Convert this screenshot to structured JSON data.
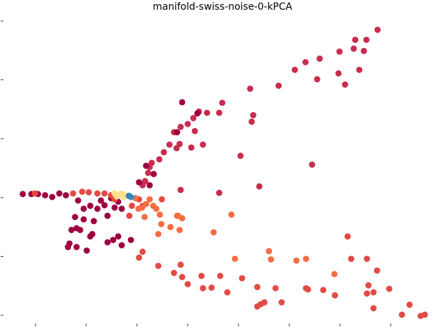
{
  "chart_data": {
    "type": "scatter",
    "title": "manifold-swiss-noise-0-kPCA",
    "xlim": [
      -0.63,
      8.0
    ],
    "ylim": [
      -0.14,
      5.12
    ],
    "xticks": [
      0,
      1,
      2,
      3,
      4,
      5,
      6,
      7
    ],
    "yticks": [
      0,
      1,
      2,
      3,
      4,
      5
    ],
    "grid": false,
    "series": [
      {
        "color": "#c82c4e",
        "x": [
          6.74,
          6.3,
          6.52,
          6.47,
          6.27,
          5.99,
          5.6,
          5.32,
          5.11,
          5.97,
          5.55,
          6.1,
          6.38,
          4.79,
          4.23,
          3.68,
          4.29,
          4.26,
          3.62,
          3.38,
          3.22,
          3.11,
          3.0,
          2.86,
          2.73,
          2.84,
          2.78,
          3.3,
          3.14,
          3.07,
          2.53,
          2.64,
          2.44,
          2.29,
          2.25,
          2.22,
          2.16,
          2.11,
          4.04,
          5.45,
          4.41,
          3.62,
          2.86
        ],
        "y": [
          4.85,
          4.68,
          4.68,
          4.49,
          4.53,
          4.48,
          4.36,
          4.3,
          4.17,
          4.11,
          4.01,
          3.92,
          4.17,
          3.9,
          3.85,
          3.61,
          3.4,
          3.29,
          3.44,
          3.44,
          3.46,
          3.35,
          3.25,
          3.2,
          3.11,
          2.91,
          2.84,
          2.9,
          3.13,
          2.85,
          2.77,
          2.9,
          2.65,
          2.59,
          2.52,
          2.42,
          2.28,
          2.21,
          2.71,
          2.56,
          2.19,
          2.08,
          2.13
        ]
      },
      {
        "color": "#9e0142",
        "x": [
          -0.25,
          -0.08,
          0.05,
          0.19,
          0.33,
          0.47,
          0.6,
          0.84,
          0.95,
          1.08,
          1.22,
          1.36,
          1.49,
          1.56,
          1.42,
          1.15,
          0.95,
          0.81,
          0.71,
          0.67,
          0.64,
          0.81,
          1.01,
          1.08,
          1.12,
          0.88,
          0.78,
          1.29,
          1.7,
          1.63,
          1.53,
          1.88,
          1.7,
          1.42,
          2.89,
          2.79,
          3.19,
          2.33,
          2.18,
          2.25,
          2.04,
          1.63
        ],
        "y": [
          2.06,
          2.06,
          2.06,
          2.04,
          2.01,
          2.07,
          2.04,
          1.95,
          1.81,
          1.86,
          1.81,
          1.87,
          1.99,
          1.83,
          1.69,
          1.6,
          1.63,
          1.48,
          1.45,
          1.22,
          1.16,
          1.16,
          1.1,
          1.34,
          1.38,
          1.45,
          1.67,
          1.95,
          1.81,
          1.34,
          1.28,
          1.28,
          1.19,
          1.24,
          3.62,
          3.11,
          3.43,
          2.4,
          2.54,
          2.21,
          2.26,
          1.93
        ]
      },
      {
        "color": "#e34a45",
        "x": [
          -0.01,
          0.74,
          0.92,
          1.05,
          1.22,
          1.36,
          1.49,
          2.04,
          2.11,
          2.49,
          2.86,
          2.42,
          2.73,
          3.0,
          3.27,
          3.3,
          3.47,
          3.78,
          3.64,
          4.07,
          4.37,
          4.51,
          4.37,
          4.44,
          4.73,
          4.85,
          5.33,
          5.37,
          5.67,
          5.9,
          6.56,
          6.66,
          6.73,
          6.53,
          6.66,
          6.15,
          6.22,
          6.53,
          7.22,
          7.37,
          7.59,
          7.67,
          6.97,
          2.11,
          2.04,
          1.85,
          1.9,
          2.89,
          1.56
        ],
        "y": [
          2.07,
          2.07,
          2.1,
          2.09,
          2.07,
          2.07,
          2.04,
          1.97,
          1.86,
          1.97,
          0.86,
          0.84,
          0.72,
          0.53,
          0.67,
          0.46,
          0.47,
          0.39,
          0.67,
          0.63,
          0.48,
          0.22,
          0.15,
          0.19,
          0.46,
          0.22,
          0.46,
          0.44,
          0.43,
          0.34,
          0.51,
          0.39,
          0.76,
          0.37,
          0.12,
          1.34,
          0.96,
          0.96,
          0.01,
          0.18,
          -0.01,
          0.01,
          0.45,
          1.08,
          0.98,
          1.69,
          1.86,
          0.65,
          1.97
        ]
      },
      {
        "color": "#f46d43",
        "x": [
          1.97,
          2.18,
          2.32,
          2.45,
          2.15,
          2.48,
          2.42,
          2.66,
          2.89,
          2.79,
          2.84,
          2.81,
          3.51,
          3.86,
          3.93,
          4.6,
          4.64,
          5.14,
          5.33,
          5.89,
          2.03,
          2.25,
          2.38,
          2.1
        ],
        "y": [
          1.99,
          1.89,
          1.86,
          1.71,
          1.67,
          1.55,
          1.38,
          1.5,
          1.65,
          1.69,
          1.45,
          1.69,
          1.41,
          1.71,
          0.96,
          1.09,
          0.95,
          0.93,
          0.96,
          0.7,
          1.81,
          1.97,
          1.81,
          1.83
        ]
      },
      {
        "color": "#fee08b",
        "x": [
          1.56,
          1.63,
          1.7,
          1.77,
          1.6,
          1.74
        ],
        "y": [
          2.07,
          2.04,
          2.07,
          2.04,
          2.02,
          2.01
        ]
      },
      {
        "color": "#3288bd",
        "x": [
          1.84,
          1.88
        ],
        "y": [
          2.03,
          2.01
        ]
      }
    ]
  }
}
